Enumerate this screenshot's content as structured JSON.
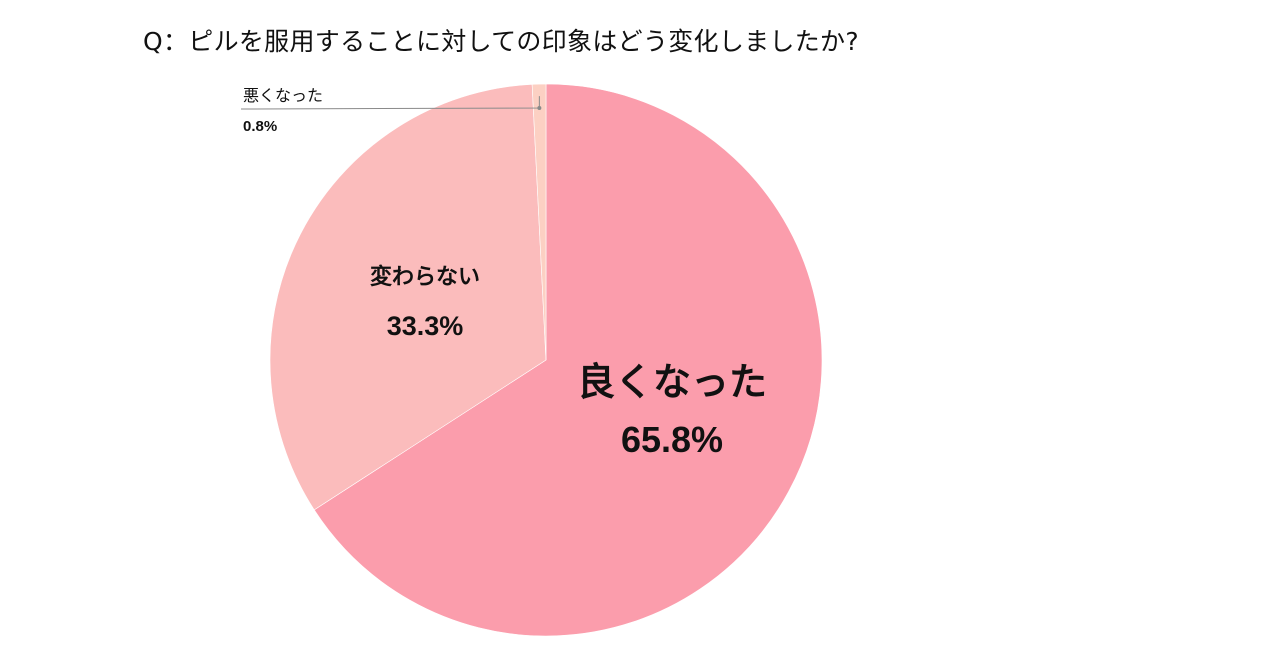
{
  "chart_data": {
    "type": "pie",
    "title": "Q：ピルを服用することに対しての印象はどう変化しましたか?",
    "slices": [
      {
        "label": "良くなった",
        "value": 65.8,
        "display": "65.8%",
        "color": "#fb9dac"
      },
      {
        "label": "変わらない",
        "value": 33.3,
        "display": "33.3%",
        "color": "#fbbcbc"
      },
      {
        "label": "悪くなった",
        "value": 0.8,
        "display": "0.8%",
        "color": "#fcd0c3"
      }
    ],
    "start_angle_deg": 0,
    "direction": "clockwise",
    "legend": "none"
  }
}
